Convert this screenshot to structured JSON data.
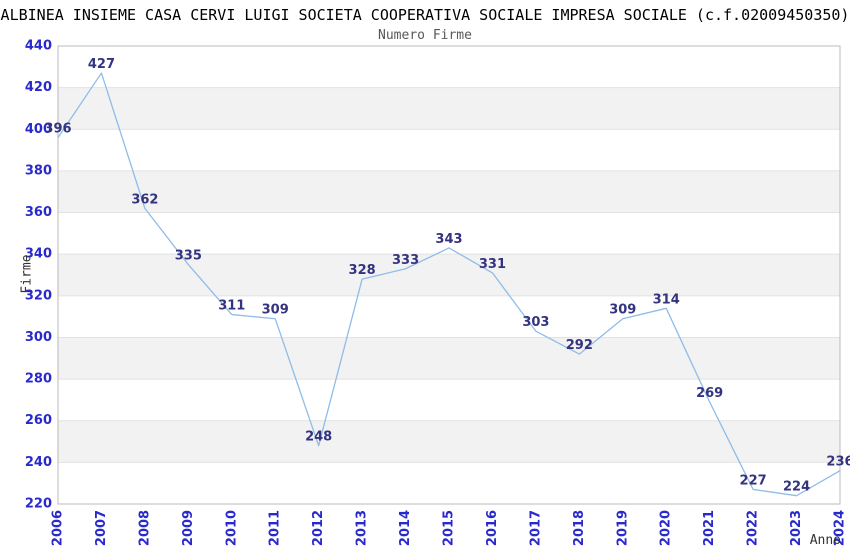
{
  "chart_data": {
    "type": "line",
    "title": "ALBINEA INSIEME CASA CERVI LUIGI SOCIETA COOPERATIVA SOCIALE IMPRESA SOCIALE (c.f.02009450350)",
    "subtitle": "Numero Firme",
    "xlabel": "Anno",
    "ylabel": "Firme",
    "categories": [
      "2006",
      "2007",
      "2008",
      "2009",
      "2010",
      "2011",
      "2012",
      "2013",
      "2014",
      "2015",
      "2016",
      "2017",
      "2018",
      "2019",
      "2020",
      "2021",
      "2022",
      "2023",
      "2024"
    ],
    "values": [
      396,
      427,
      362,
      335,
      311,
      309,
      248,
      328,
      333,
      343,
      331,
      303,
      292,
      309,
      314,
      269,
      227,
      224,
      236
    ],
    "ylim": [
      220,
      440
    ],
    "ytick_step": 20,
    "yticks": [
      220,
      240,
      260,
      280,
      300,
      320,
      340,
      360,
      380,
      400,
      420,
      440
    ],
    "legend": null,
    "grid": "alternating-horizontal-bands",
    "data_labels_visible": true,
    "x_tick_rotation": -90,
    "colors": {
      "line": "#8fbce8",
      "data_label": "#333380",
      "tick_label": "#2929cc",
      "band_gray": "#f2f2f2",
      "band_white": "#ffffff",
      "gridline": "#e2e2e2",
      "plot_border": "#bbbbbb",
      "title": "#000000",
      "subtitle": "#595959",
      "axis_title": "#333333",
      "background": "#ffffff"
    }
  }
}
